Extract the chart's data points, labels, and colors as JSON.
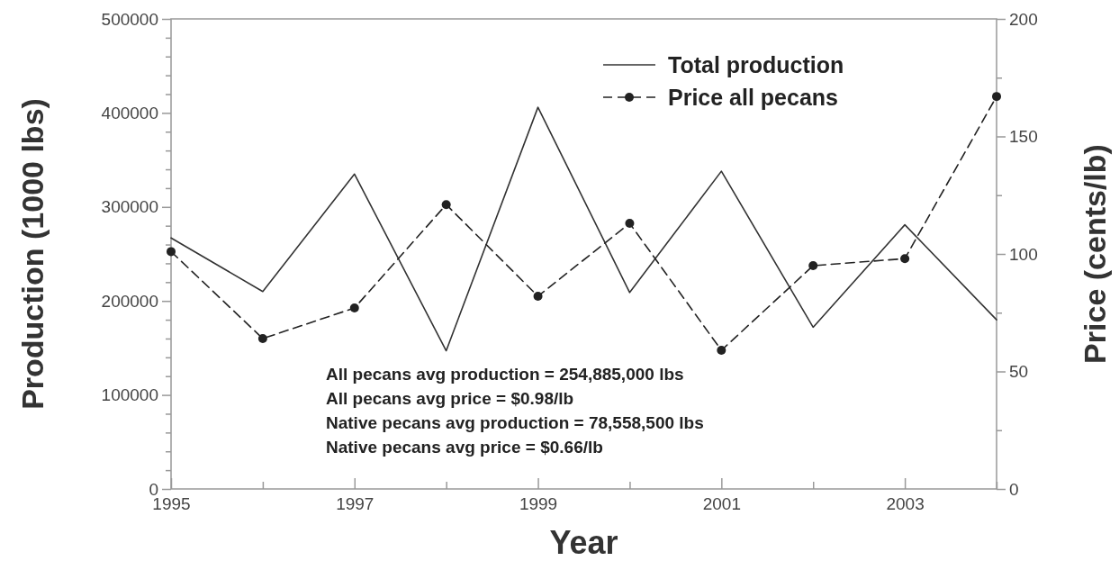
{
  "chart_data": {
    "type": "line",
    "xlabel": "Year",
    "ylabel": "Production (1000 lbs)",
    "y2label": "Price (cents/lb)",
    "x": [
      1995,
      1996,
      1997,
      1998,
      1999,
      2000,
      2001,
      2002,
      2003,
      2004
    ],
    "series": [
      {
        "name": "Total production",
        "color": "#333333",
        "values": [
          267000,
          210000,
          335000,
          147000,
          406000,
          209000,
          338000,
          172000,
          281000,
          180000
        ],
        "line_style": "solid",
        "marker": "none"
      },
      {
        "name": "Price all pecans",
        "color": "#222222",
        "axis": "y2",
        "values": [
          101,
          64,
          77,
          121,
          82,
          113,
          59,
          95,
          98,
          167
        ],
        "line_style": "dashed",
        "marker": "circle"
      }
    ],
    "xlim": [
      1995,
      2004
    ],
    "xticks": [
      1995,
      {
        "value": 1996,
        "label": null
      },
      1997,
      {
        "value": 1998,
        "label": null
      },
      1999,
      {
        "value": 2000,
        "label": null
      },
      2001,
      {
        "value": 2002,
        "label": null
      },
      2003,
      {
        "value": 2004,
        "label": null
      }
    ],
    "ylim": [
      0,
      500000
    ],
    "yticks": [
      0,
      {
        "value": 20000,
        "label": null
      },
      {
        "value": 40000,
        "label": null
      },
      {
        "value": 60000,
        "label": null
      },
      {
        "value": 80000,
        "label": null
      },
      100000,
      {
        "value": 120000,
        "label": null
      },
      {
        "value": 140000,
        "label": null
      },
      {
        "value": 160000,
        "label": null
      },
      {
        "value": 180000,
        "label": null
      },
      200000,
      {
        "value": 220000,
        "label": null
      },
      {
        "value": 240000,
        "label": null
      },
      {
        "value": 260000,
        "label": null
      },
      {
        "value": 280000,
        "label": null
      },
      300000,
      {
        "value": 320000,
        "label": null
      },
      {
        "value": 340000,
        "label": null
      },
      {
        "value": 360000,
        "label": null
      },
      {
        "value": 380000,
        "label": null
      },
      400000,
      {
        "value": 420000,
        "label": null
      },
      {
        "value": 440000,
        "label": null
      },
      {
        "value": 460000,
        "label": null
      },
      {
        "value": 480000,
        "label": null
      },
      500000
    ],
    "y2lim": [
      0,
      200
    ],
    "y2ticks": [
      0,
      {
        "value": 25,
        "label": null
      },
      50,
      {
        "value": 75,
        "label": null
      },
      100,
      {
        "value": 125,
        "label": null
      },
      150,
      {
        "value": 175,
        "label": null
      },
      200
    ],
    "legend": "top right",
    "grid": false,
    "annotations": [
      "All pecans avg production = 254,885,000 lbs",
      "All pecans avg price = $0.98/lb",
      "Native pecans avg production = 78,558,500 lbs",
      "Native pecans avg price = $0.66/lb"
    ]
  }
}
